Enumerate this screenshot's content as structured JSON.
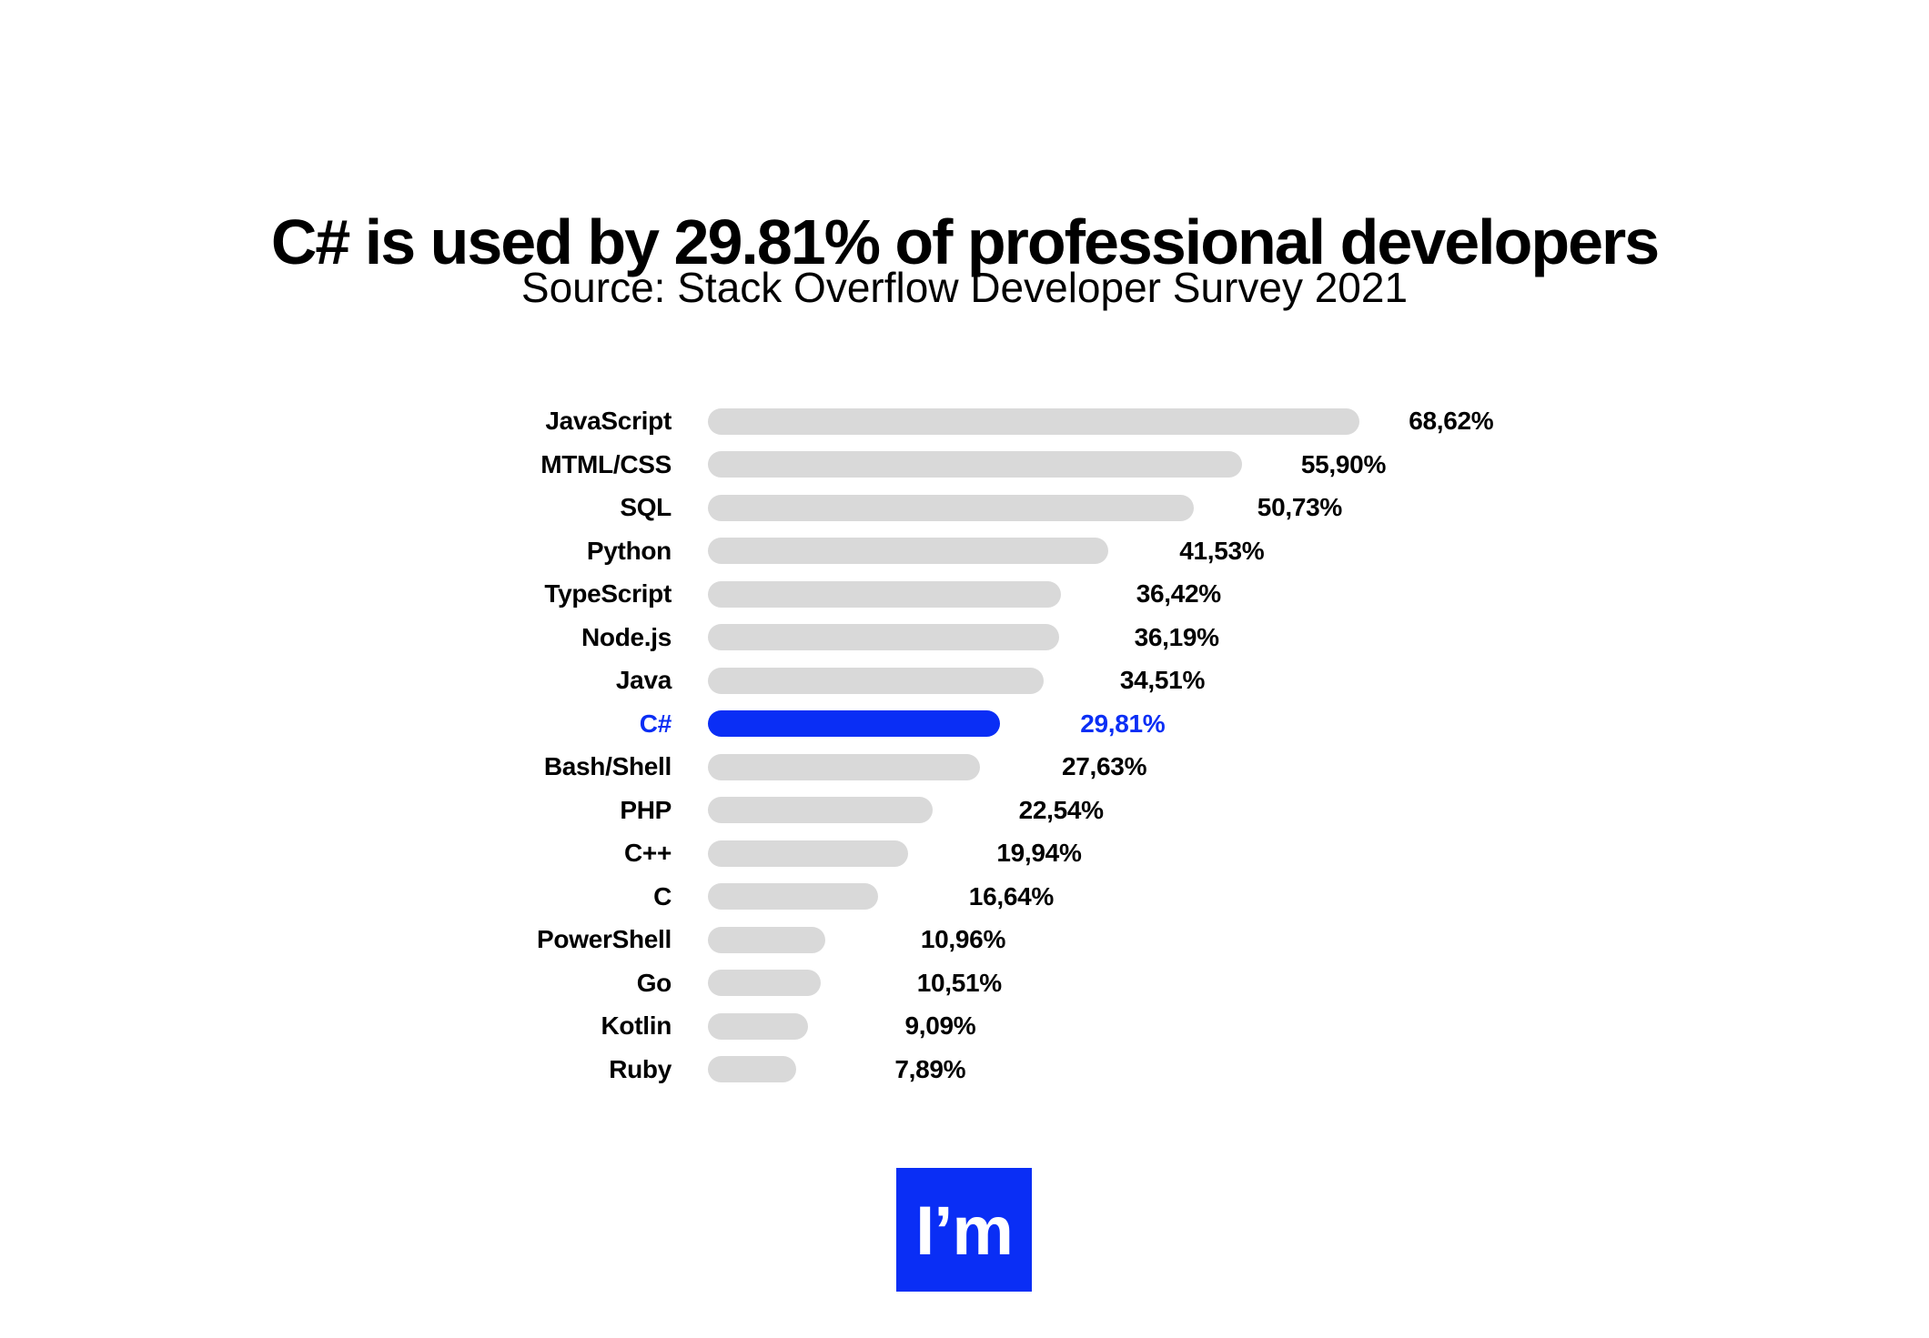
{
  "header": {
    "title": "C# is used by 29.81% of professional developers",
    "subtitle": "Source: Stack Overflow Developer Survey 2021"
  },
  "chart_data": {
    "type": "bar",
    "orientation": "horizontal",
    "title": "C# is used by 29.81% of professional developers",
    "source": "Source: Stack Overflow Developer Survey 2021",
    "categories": [
      "JavaScript",
      "MTML/CSS",
      "SQL",
      "Python",
      "TypeScript",
      "Node.js",
      "Java",
      "C#",
      "Bash/Shell",
      "PHP",
      "C++",
      "C",
      "PowerShell",
      "Go",
      "Kotlin",
      "Ruby"
    ],
    "values": [
      68.62,
      55.9,
      50.73,
      41.53,
      36.42,
      36.19,
      34.51,
      29.81,
      27.63,
      22.54,
      19.94,
      16.64,
      10.96,
      10.51,
      9.09,
      7.89
    ],
    "value_labels": [
      "68,62%",
      "55,90%",
      "50,73%",
      "41,53%",
      "36,42%",
      "36,19%",
      "34,51%",
      "29,81%",
      "27,63%",
      "22,54%",
      "19,94%",
      "16,64%",
      "10,96%",
      "10,51%",
      "9,09%",
      "7,89%"
    ],
    "highlight_category": "C#",
    "highlight_value_label": "29,81%",
    "bar_color": "#D9D9D9",
    "highlight_color": "#0A2EF5",
    "text_color": "#000000",
    "xlim": [
      0,
      70
    ],
    "grid": false,
    "legend": false,
    "value_labels_position": "right-of-bar"
  },
  "footer": {
    "logo_text": "I’m",
    "logo_color": "#0A2EF5",
    "logo_text_color": "#ffffff"
  }
}
